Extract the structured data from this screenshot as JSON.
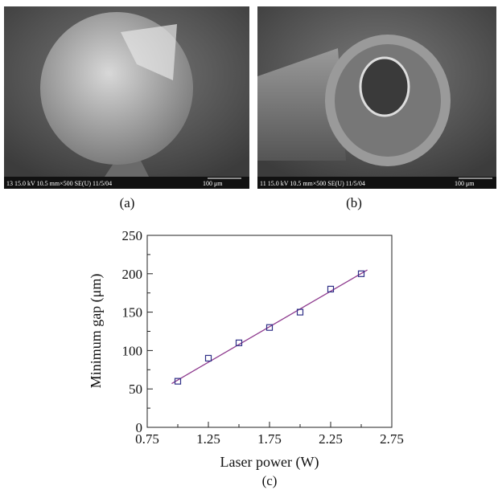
{
  "panels": [
    {
      "info": "13 15.0 kV 10.5 mm×500 SE(U) 11/5/04",
      "scale": "100 μm",
      "label": "(a)"
    },
    {
      "info": "11 15.0 kV 10.5 mm×500 SE(U) 11/5/04",
      "scale": "100 μm",
      "label": "(b)"
    }
  ],
  "chart_data": {
    "type": "scatter",
    "label": "(c)",
    "x_label": "Laser power (W)",
    "y_label": "Minimum gap (μm)",
    "x": [
      1,
      1.25,
      1.5,
      1.75,
      2,
      2.25,
      2.5
    ],
    "values": [
      60,
      90,
      110,
      130,
      150,
      180,
      200
    ],
    "color": "#2e2e86",
    "fit_line": {
      "x": [
        0.95,
        2.55
      ],
      "values": [
        57,
        205
      ],
      "color": "#8e3a8e"
    },
    "xlim": [
      0.75,
      2.75
    ],
    "xticks": [
      0.75,
      1.25,
      1.75,
      2.25,
      2.75
    ],
    "xminor": [
      1,
      1.5,
      2,
      2.5
    ],
    "ylim": [
      0,
      250
    ],
    "yticks": [
      0,
      50,
      100,
      150,
      200,
      250
    ],
    "yminor": [
      25,
      75,
      125,
      175,
      225
    ]
  }
}
